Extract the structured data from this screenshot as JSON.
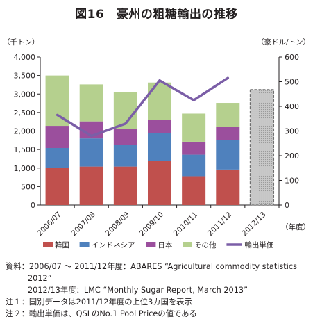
{
  "title": "図16　豪州の粗糖輸出の推移",
  "notes": {
    "source1": "資料：2006/07 〜 2011/12年度：ABARES “Agricultural commodity statistics",
    "source1b": "2012”",
    "source2": "2012/13年度：LMC “Monthly Sugar Report, March 2013”",
    "note1": "注１：国別データは2011/12年度の上位3カ国を表示",
    "note2": "注２：輸出単価は、QSLのNo.1 Pool Priceの値である"
  },
  "chart_data": {
    "type": "bar",
    "stacked": true,
    "categories": [
      "2006/07",
      "2007/08",
      "2008/09",
      "2009/10",
      "2010/11",
      "2011/12",
      "2012/13"
    ],
    "x_unit_label": "（年度）",
    "left_axis": {
      "unit_label": "（千トン）",
      "range": [
        0,
        4000
      ],
      "ticks": [
        0,
        500,
        1000,
        1500,
        2000,
        2500,
        3000,
        3500,
        4000
      ],
      "tick_labels": [
        "0",
        "500",
        "1,000",
        "1,500",
        "2,000",
        "2,500",
        "3,000",
        "3,500",
        "4,000"
      ]
    },
    "right_axis": {
      "unit_label": "（豪ドル/トン）",
      "range": [
        0,
        600
      ],
      "ticks": [
        0,
        100,
        200,
        300,
        400,
        500,
        600
      ],
      "tick_labels": [
        "0",
        "100",
        "200",
        "300",
        "400",
        "500",
        "600"
      ]
    },
    "series": [
      {
        "name": "韓国",
        "color": "#c0504d",
        "values": [
          1000,
          1040,
          1040,
          1200,
          780,
          960,
          null
        ]
      },
      {
        "name": "インドネシア",
        "color": "#4f81bd",
        "values": [
          540,
          760,
          590,
          750,
          580,
          790,
          null
        ]
      },
      {
        "name": "日本",
        "color": "#9b4f9d",
        "values": [
          600,
          460,
          430,
          360,
          350,
          360,
          null
        ]
      },
      {
        "name": "その他",
        "color": "#b5d08e",
        "values": [
          1360,
          1000,
          1000,
          1000,
          760,
          650,
          null
        ]
      }
    ],
    "total_only": {
      "category": "2012/13",
      "value": 3120,
      "color": "#c8c8c8",
      "pattern": "dashed-outline"
    },
    "line": {
      "name": "輸出単価",
      "color": "#7b5ea7",
      "axis": "right",
      "values": [
        365,
        280,
        330,
        505,
        425,
        515,
        null
      ]
    },
    "legend_position": "bottom",
    "grid": false
  }
}
